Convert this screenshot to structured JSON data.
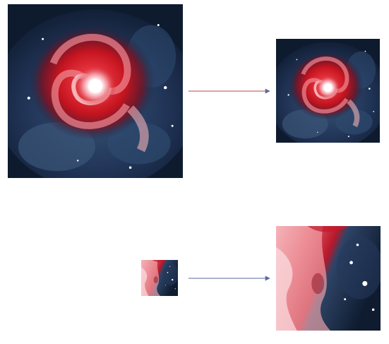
{
  "figure": {
    "panels": [
      {
        "id": "original",
        "icon": "galaxy-image"
      },
      {
        "id": "downsampled",
        "icon": "galaxy-image"
      },
      {
        "id": "crop",
        "icon": "galaxy-crop-image"
      },
      {
        "id": "upsampled-crop",
        "icon": "galaxy-crop-image"
      }
    ],
    "arrows": [
      {
        "from": "original",
        "to": "downsampled"
      },
      {
        "from": "crop",
        "to": "upsampled-crop"
      }
    ],
    "colors": {
      "background": "#0e1a2e",
      "nebula": "#2d4a6e",
      "arm_red": "#d0202a",
      "arm_light": "#f08a94",
      "core": "#ffffff",
      "arrow": "#5a6a9a"
    }
  }
}
